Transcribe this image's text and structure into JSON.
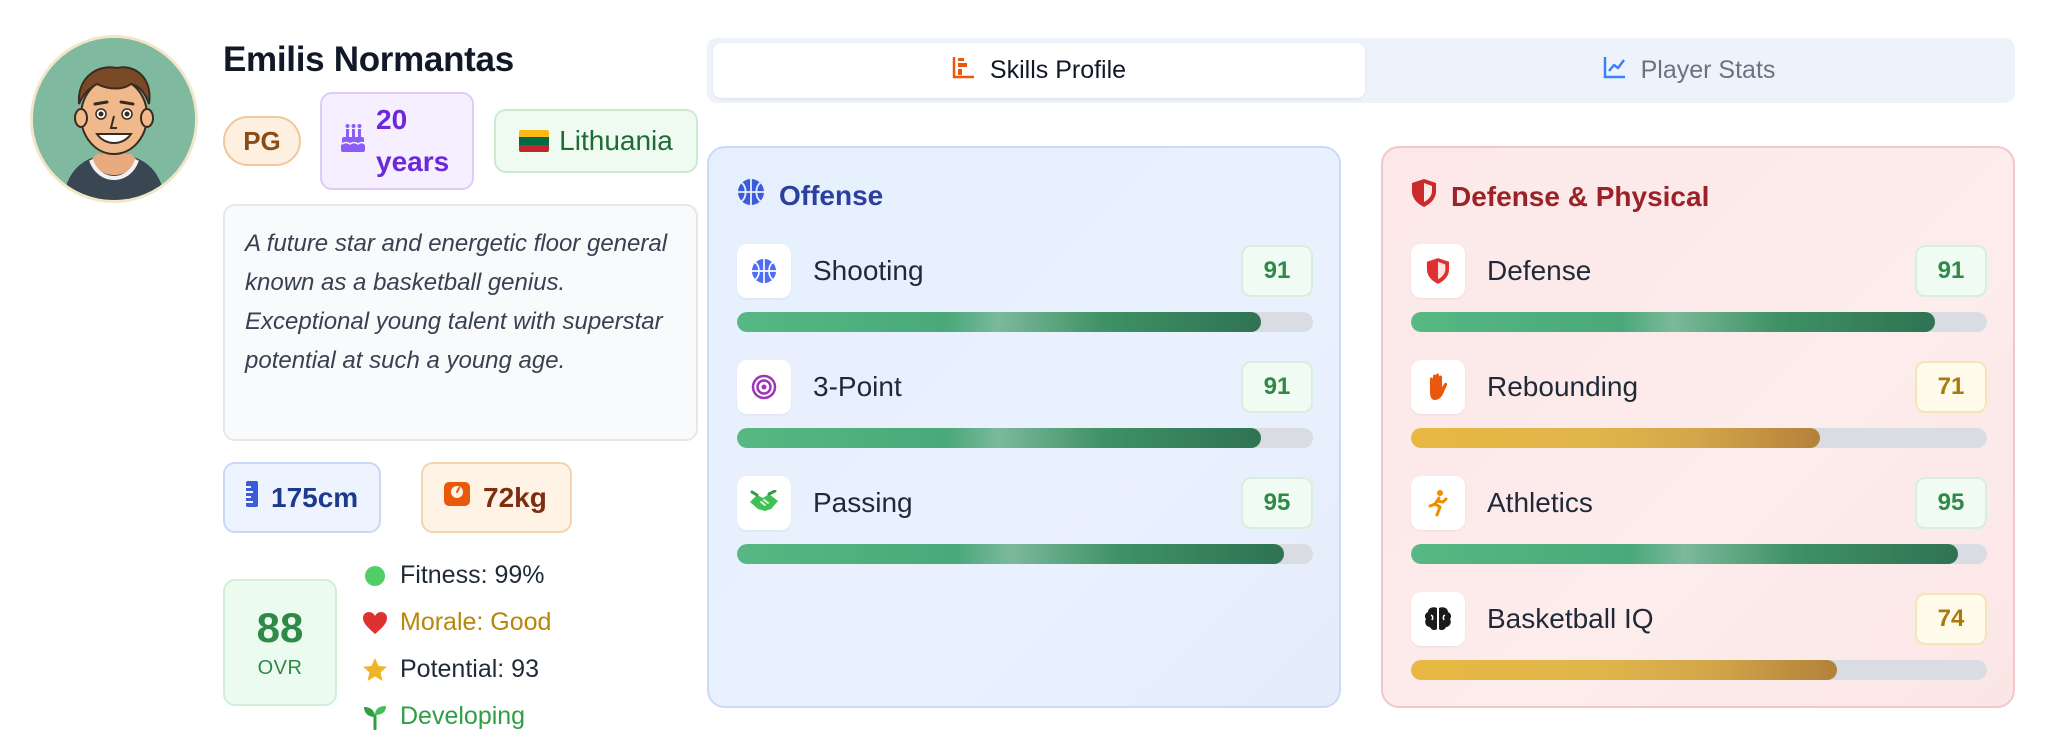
{
  "player": {
    "name": "Emilis Normantas",
    "position": "PG",
    "age_number": "20",
    "age_unit": "years",
    "country": "Lithuania",
    "bio": "A future star and energetic floor general known as a basketball genius. Exceptional young talent with superstar potential at such a young age.",
    "height": "175cm",
    "weight": "72kg",
    "ovr_value": "88",
    "ovr_label": "OVR"
  },
  "status": [
    {
      "icon": "green-dot-icon",
      "text": "Fitness: 99%",
      "color": "#1f2937"
    },
    {
      "icon": "heart-icon",
      "text": "Morale: Good",
      "color": "#b8860b"
    },
    {
      "icon": "star-icon",
      "text": "Potential: 93",
      "color": "#1f2937"
    },
    {
      "icon": "sprout-icon",
      "text": "Developing",
      "color": "#2f9e44"
    }
  ],
  "tabs": {
    "skills_label": "Skills Profile",
    "stats_label": "Player Stats",
    "active": "skills"
  },
  "offense": {
    "title": "Offense",
    "skills": [
      {
        "name": "Shooting",
        "value": "91",
        "level": 0.91,
        "color": "green"
      },
      {
        "name": "3-Point",
        "value": "91",
        "level": 0.91,
        "color": "green"
      },
      {
        "name": "Passing",
        "value": "95",
        "level": 0.95,
        "color": "green"
      }
    ]
  },
  "defense": {
    "title": "Defense & Physical",
    "skills": [
      {
        "name": "Defense",
        "value": "91",
        "level": 0.91,
        "color": "green"
      },
      {
        "name": "Rebounding",
        "value": "71",
        "level": 0.71,
        "color": "yellow"
      },
      {
        "name": "Athletics",
        "value": "95",
        "level": 0.95,
        "color": "green"
      },
      {
        "name": "Basketball IQ",
        "value": "74",
        "level": 0.74,
        "color": "yellow"
      }
    ]
  },
  "colors": {
    "accent_green": "#2f8a47",
    "accent_blue": "#2c3f9e",
    "accent_red": "#9b2226",
    "lithuania_flag": [
      "#fdb913",
      "#006a44",
      "#c1272d"
    ]
  }
}
